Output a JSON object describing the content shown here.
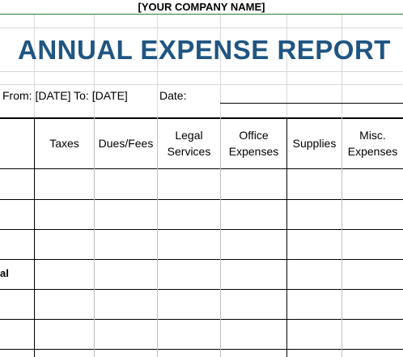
{
  "header": {
    "company_name": "[YOUR COMPANY NAME]",
    "title": "ANNUAL EXPENSE REPORT"
  },
  "info": {
    "from_label": "From: [DATE] To: [DATE]",
    "date_label": "Date:"
  },
  "table": {
    "columns": [
      {
        "line1": "Taxes",
        "line2": ""
      },
      {
        "line1": "Dues/Fees",
        "line2": ""
      },
      {
        "line1": "Legal",
        "line2": "Services"
      },
      {
        "line1": "Office",
        "line2": "Expenses"
      },
      {
        "line1": "Supplies",
        "line2": ""
      },
      {
        "line1": "Misc.",
        "line2": "Expenses"
      }
    ],
    "row_label_fragment": "al"
  },
  "colors": {
    "title": "#1f5582",
    "company_rule": "#2e7d32",
    "grid": "#d9d9d9"
  }
}
